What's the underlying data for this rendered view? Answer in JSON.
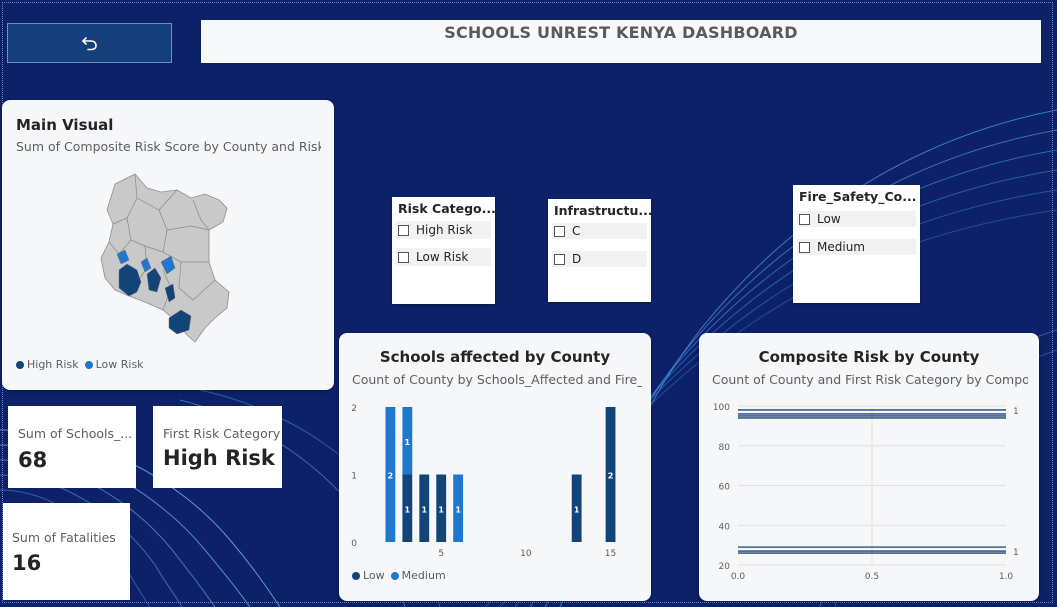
{
  "header": {
    "title": "SCHOOLS UNREST KENYA DASHBOARD"
  },
  "back_button": {
    "icon": "back-arrow-icon"
  },
  "main_visual": {
    "title": "Main Visual",
    "subtitle": "Sum of Composite Risk Score by County and Risk ...",
    "legend": [
      {
        "label": "High Risk",
        "color": "#12447a"
      },
      {
        "label": "Low Risk",
        "color": "#1f77d0"
      }
    ]
  },
  "slicers": [
    {
      "title": "Risk Catego...",
      "items": [
        "High Risk",
        "Low Risk"
      ]
    },
    {
      "title": "Infrastructu...",
      "items": [
        "C",
        "D"
      ]
    },
    {
      "title": "Fire_Safety_Co...",
      "items": [
        "Low",
        "Medium"
      ]
    }
  ],
  "kpis": {
    "schools": {
      "label": "Sum of Schools_...",
      "value": "68"
    },
    "risk_category": {
      "label": "First Risk Category",
      "value": "High Risk"
    },
    "fatalities": {
      "label": "Sum of Fatalities",
      "value": "16"
    }
  },
  "colors": {
    "low": "#12447a",
    "medium": "#1f77d0",
    "background": "#0c2168"
  },
  "chart_data": [
    {
      "type": "bar",
      "title": "Schools affected by County",
      "subtitle": "Count of County by Schools_Affected and Fire_...",
      "xlabel": "",
      "ylabel": "",
      "xticks": [
        5,
        10,
        15
      ],
      "yticks": [
        0,
        1,
        2
      ],
      "ylim": [
        0,
        2
      ],
      "xlim": [
        0.5,
        15.5
      ],
      "legend": [
        "Low",
        "Medium"
      ],
      "bars": [
        {
          "x": 2,
          "low": 0,
          "medium": 2
        },
        {
          "x": 3,
          "low": 1,
          "medium": 1
        },
        {
          "x": 4,
          "low": 1,
          "medium": 0
        },
        {
          "x": 5,
          "low": 1,
          "medium": 0
        },
        {
          "x": 6,
          "low": 0,
          "medium": 1
        },
        {
          "x": 13,
          "low": 1,
          "medium": 0
        },
        {
          "x": 15,
          "low": 2,
          "medium": 0
        }
      ]
    },
    {
      "type": "line",
      "title": "Composite Risk by County",
      "subtitle": "Count of County and First Risk Category by Compos...",
      "xlabel": "",
      "ylabel": "",
      "xticks": [
        "0.0",
        "0.5",
        "1.0"
      ],
      "yticks": [
        20,
        40,
        60,
        80,
        100
      ],
      "xlim": [
        0,
        1
      ],
      "ylim": [
        20,
        100
      ],
      "lines": [
        {
          "y": 98,
          "label": "1"
        },
        {
          "y": 96,
          "label": ""
        },
        {
          "y": 95,
          "label": ""
        },
        {
          "y": 94,
          "label": ""
        },
        {
          "y": 29,
          "label": ""
        },
        {
          "y": 27,
          "label": "1"
        },
        {
          "y": 26,
          "label": ""
        }
      ]
    }
  ]
}
